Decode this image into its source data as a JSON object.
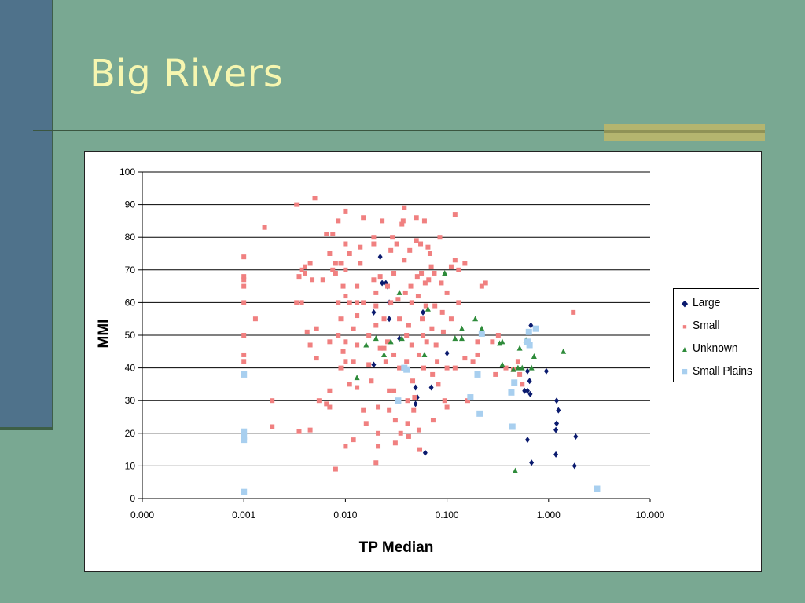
{
  "slide": {
    "title": "Big Rivers",
    "colors": {
      "background": "#79a892",
      "title": "#f6f6b0",
      "side_bar": "#4f728b",
      "accent": "#b4b56f"
    }
  },
  "chart_data": {
    "type": "scatter",
    "x_scale": "log",
    "xlabel": "TP Median",
    "ylabel": "MMI",
    "xlim": [
      0.0001,
      10
    ],
    "ylim": [
      0,
      100
    ],
    "grid": "horizontal",
    "legend_position": "right",
    "x_ticks": [
      {
        "v": 0.0001,
        "label": "0.000"
      },
      {
        "v": 0.001,
        "label": "0.001"
      },
      {
        "v": 0.01,
        "label": "0.010"
      },
      {
        "v": 0.1,
        "label": "0.100"
      },
      {
        "v": 1,
        "label": "1.000"
      },
      {
        "v": 10,
        "label": "10.000"
      }
    ],
    "y_ticks": [
      0,
      10,
      20,
      30,
      40,
      50,
      60,
      70,
      80,
      90,
      100
    ],
    "series": [
      {
        "name": "Large",
        "color": "#0a1a6e",
        "marker": "diamond",
        "points": [
          [
            0.022,
            74
          ],
          [
            0.023,
            66
          ],
          [
            0.025,
            66
          ],
          [
            0.026,
            65
          ],
          [
            0.027,
            60
          ],
          [
            0.027,
            55
          ],
          [
            0.019,
            57
          ],
          [
            0.019,
            41
          ],
          [
            0.034,
            49
          ],
          [
            0.058,
            57
          ],
          [
            0.049,
            34
          ],
          [
            0.051,
            31
          ],
          [
            0.049,
            29
          ],
          [
            0.061,
            14
          ],
          [
            0.07,
            34
          ],
          [
            0.1,
            44.5
          ],
          [
            0.62,
            18
          ],
          [
            0.65,
            36
          ],
          [
            0.66,
            32
          ],
          [
            0.67,
            53
          ],
          [
            0.68,
            11
          ],
          [
            0.62,
            39
          ],
          [
            0.58,
            33
          ],
          [
            0.62,
            33
          ],
          [
            0.95,
            39
          ],
          [
            1.2,
            30
          ],
          [
            1.25,
            27
          ],
          [
            1.2,
            23
          ],
          [
            1.18,
            21
          ],
          [
            1.18,
            13.5
          ],
          [
            1.8,
            10
          ],
          [
            1.85,
            19
          ]
        ]
      },
      {
        "name": "Small",
        "color": "#f08080",
        "marker": "square",
        "points": [
          [
            0.001,
            74
          ],
          [
            0.001,
            68
          ],
          [
            0.001,
            67
          ],
          [
            0.001,
            65
          ],
          [
            0.001,
            60
          ],
          [
            0.001,
            50
          ],
          [
            0.001,
            44
          ],
          [
            0.001,
            42
          ],
          [
            0.0013,
            55
          ],
          [
            0.0016,
            83
          ],
          [
            0.0019,
            30
          ],
          [
            0.0019,
            22
          ],
          [
            0.0033,
            90
          ],
          [
            0.0033,
            60
          ],
          [
            0.0035,
            20.5
          ],
          [
            0.0035,
            68
          ],
          [
            0.0037,
            70
          ],
          [
            0.0037,
            60
          ],
          [
            0.004,
            69
          ],
          [
            0.004,
            71
          ],
          [
            0.0042,
            51
          ],
          [
            0.0045,
            47
          ],
          [
            0.0045,
            21
          ],
          [
            0.0045,
            72
          ],
          [
            0.0047,
            67
          ],
          [
            0.005,
            92
          ],
          [
            0.0052,
            52
          ],
          [
            0.0052,
            43
          ],
          [
            0.0055,
            30
          ],
          [
            0.006,
            67
          ],
          [
            0.0065,
            81
          ],
          [
            0.0065,
            29
          ],
          [
            0.007,
            33
          ],
          [
            0.007,
            28
          ],
          [
            0.007,
            48
          ],
          [
            0.007,
            75
          ],
          [
            0.0075,
            81
          ],
          [
            0.0075,
            70
          ],
          [
            0.008,
            72
          ],
          [
            0.008,
            69
          ],
          [
            0.0085,
            60
          ],
          [
            0.0085,
            50
          ],
          [
            0.0085,
            85
          ],
          [
            0.009,
            72
          ],
          [
            0.009,
            55
          ],
          [
            0.009,
            40
          ],
          [
            0.0095,
            65
          ],
          [
            0.0095,
            45
          ],
          [
            0.01,
            88
          ],
          [
            0.01,
            78
          ],
          [
            0.01,
            70
          ],
          [
            0.01,
            62
          ],
          [
            0.01,
            48
          ],
          [
            0.01,
            42
          ],
          [
            0.01,
            16
          ],
          [
            0.011,
            35
          ],
          [
            0.011,
            60
          ],
          [
            0.011,
            75
          ],
          [
            0.012,
            42
          ],
          [
            0.012,
            18
          ],
          [
            0.012,
            52
          ],
          [
            0.013,
            65
          ],
          [
            0.013,
            60
          ],
          [
            0.013,
            56
          ],
          [
            0.013,
            47
          ],
          [
            0.013,
            34
          ],
          [
            0.014,
            72
          ],
          [
            0.014,
            77
          ],
          [
            0.015,
            86
          ],
          [
            0.015,
            60
          ],
          [
            0.015,
            27
          ],
          [
            0.016,
            23
          ],
          [
            0.017,
            50
          ],
          [
            0.017,
            41
          ],
          [
            0.018,
            36
          ],
          [
            0.019,
            80
          ],
          [
            0.019,
            78
          ],
          [
            0.019,
            67
          ],
          [
            0.02,
            63
          ],
          [
            0.02,
            59
          ],
          [
            0.02,
            53
          ],
          [
            0.02,
            11
          ],
          [
            0.021,
            16
          ],
          [
            0.021,
            28
          ],
          [
            0.021,
            20
          ],
          [
            0.022,
            46
          ],
          [
            0.022,
            68
          ],
          [
            0.023,
            85
          ],
          [
            0.024,
            46
          ],
          [
            0.024,
            55
          ],
          [
            0.025,
            42
          ],
          [
            0.026,
            65
          ],
          [
            0.026,
            48
          ],
          [
            0.027,
            33
          ],
          [
            0.027,
            27
          ],
          [
            0.028,
            76
          ],
          [
            0.028,
            60
          ],
          [
            0.029,
            80
          ],
          [
            0.03,
            69
          ],
          [
            0.03,
            44
          ],
          [
            0.03,
            33
          ],
          [
            0.031,
            24
          ],
          [
            0.031,
            17
          ],
          [
            0.032,
            78
          ],
          [
            0.033,
            61
          ],
          [
            0.034,
            55
          ],
          [
            0.034,
            40
          ],
          [
            0.035,
            20
          ],
          [
            0.036,
            84
          ],
          [
            0.037,
            85
          ],
          [
            0.038,
            89
          ],
          [
            0.038,
            73
          ],
          [
            0.039,
            63
          ],
          [
            0.04,
            50
          ],
          [
            0.04,
            42
          ],
          [
            0.041,
            30
          ],
          [
            0.041,
            23
          ],
          [
            0.042,
            19
          ],
          [
            0.042,
            53
          ],
          [
            0.043,
            76
          ],
          [
            0.044,
            65
          ],
          [
            0.045,
            60
          ],
          [
            0.045,
            47
          ],
          [
            0.046,
            36
          ],
          [
            0.047,
            27
          ],
          [
            0.048,
            31
          ],
          [
            0.05,
            86
          ],
          [
            0.05,
            79
          ],
          [
            0.051,
            68
          ],
          [
            0.052,
            62
          ],
          [
            0.053,
            44
          ],
          [
            0.053,
            21
          ],
          [
            0.054,
            15
          ],
          [
            0.055,
            78
          ],
          [
            0.056,
            69
          ],
          [
            0.057,
            55
          ],
          [
            0.058,
            50
          ],
          [
            0.059,
            40
          ],
          [
            0.06,
            85
          ],
          [
            0.061,
            66
          ],
          [
            0.062,
            59
          ],
          [
            0.063,
            48
          ],
          [
            0.065,
            77
          ],
          [
            0.066,
            67
          ],
          [
            0.068,
            75
          ],
          [
            0.07,
            71
          ],
          [
            0.071,
            52
          ],
          [
            0.072,
            38
          ],
          [
            0.073,
            24
          ],
          [
            0.075,
            69
          ],
          [
            0.076,
            59
          ],
          [
            0.078,
            47
          ],
          [
            0.08,
            42
          ],
          [
            0.082,
            35
          ],
          [
            0.085,
            80
          ],
          [
            0.088,
            66
          ],
          [
            0.09,
            57
          ],
          [
            0.092,
            51
          ],
          [
            0.095,
            30
          ],
          [
            0.1,
            40
          ],
          [
            0.1,
            63
          ],
          [
            0.1,
            28
          ],
          [
            0.11,
            71
          ],
          [
            0.11,
            55
          ],
          [
            0.12,
            87
          ],
          [
            0.12,
            73
          ],
          [
            0.12,
            40
          ],
          [
            0.13,
            70
          ],
          [
            0.13,
            60
          ],
          [
            0.15,
            72
          ],
          [
            0.15,
            43
          ],
          [
            0.16,
            30
          ],
          [
            0.18,
            42
          ],
          [
            0.2,
            44
          ],
          [
            0.2,
            48
          ],
          [
            0.22,
            65
          ],
          [
            0.24,
            66
          ],
          [
            0.28,
            48
          ],
          [
            0.3,
            38
          ],
          [
            0.32,
            50
          ],
          [
            0.38,
            40
          ],
          [
            0.5,
            42
          ],
          [
            0.52,
            38
          ],
          [
            0.55,
            35
          ],
          [
            1.75,
            57
          ],
          [
            0.45,
            39.5
          ],
          [
            0.008,
            9
          ]
        ]
      },
      {
        "name": "Unknown",
        "color": "#2e8b3a",
        "marker": "triangle",
        "points": [
          [
            0.013,
            37
          ],
          [
            0.016,
            47
          ],
          [
            0.02,
            49
          ],
          [
            0.024,
            44
          ],
          [
            0.028,
            48
          ],
          [
            0.034,
            63
          ],
          [
            0.036,
            49
          ],
          [
            0.06,
            44
          ],
          [
            0.065,
            58
          ],
          [
            0.095,
            69
          ],
          [
            0.12,
            49
          ],
          [
            0.14,
            52
          ],
          [
            0.14,
            49
          ],
          [
            0.19,
            55
          ],
          [
            0.22,
            52
          ],
          [
            0.33,
            47.5
          ],
          [
            0.35,
            48
          ],
          [
            0.35,
            41
          ],
          [
            0.45,
            39.5
          ],
          [
            0.47,
            8.5
          ],
          [
            0.5,
            40
          ],
          [
            0.52,
            46
          ],
          [
            0.55,
            40
          ],
          [
            0.6,
            48.5
          ],
          [
            0.68,
            40
          ],
          [
            0.72,
            43.5
          ],
          [
            1.4,
            45
          ]
        ]
      },
      {
        "name": "Small Plains",
        "color": "#a8cfef",
        "marker": "square-lg",
        "points": [
          [
            0.001,
            38
          ],
          [
            0.001,
            20.5
          ],
          [
            0.001,
            19
          ],
          [
            0.001,
            18
          ],
          [
            0.001,
            2
          ],
          [
            0.033,
            30
          ],
          [
            0.038,
            40
          ],
          [
            0.04,
            39.5
          ],
          [
            0.17,
            31
          ],
          [
            0.2,
            38
          ],
          [
            0.21,
            26
          ],
          [
            0.22,
            50.5
          ],
          [
            0.43,
            32.5
          ],
          [
            0.44,
            22
          ],
          [
            0.46,
            35.5
          ],
          [
            0.62,
            48
          ],
          [
            0.64,
            51
          ],
          [
            0.65,
            47
          ],
          [
            0.75,
            52
          ],
          [
            3,
            3
          ]
        ]
      }
    ]
  }
}
